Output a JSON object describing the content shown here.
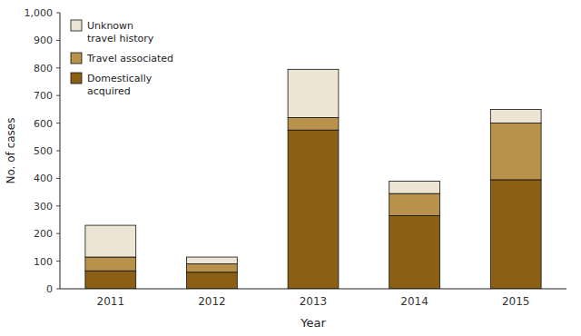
{
  "chart_data": {
    "type": "bar",
    "stacked": true,
    "categories": [
      "2011",
      "2012",
      "2013",
      "2014",
      "2015"
    ],
    "series": [
      {
        "name": "Domestically\nacquired",
        "color": "#8B6014",
        "values": [
          65,
          60,
          575,
          265,
          395
        ]
      },
      {
        "name": "Travel associated",
        "color": "#B8914A",
        "values": [
          50,
          30,
          45,
          80,
          205
        ]
      },
      {
        "name": "Unknown\ntravel history",
        "color": "#EDE4D4",
        "values": [
          115,
          25,
          175,
          45,
          50
        ]
      }
    ],
    "x_label": "Year",
    "y_label": "No. of cases",
    "ylim": [
      0,
      1000
    ],
    "yticks": [
      0,
      100,
      200,
      300,
      400,
      500,
      600,
      700,
      800,
      900,
      {
        "value": 1000,
        "label": "1,000"
      }
    ],
    "grid": false,
    "legend": "upper left"
  }
}
